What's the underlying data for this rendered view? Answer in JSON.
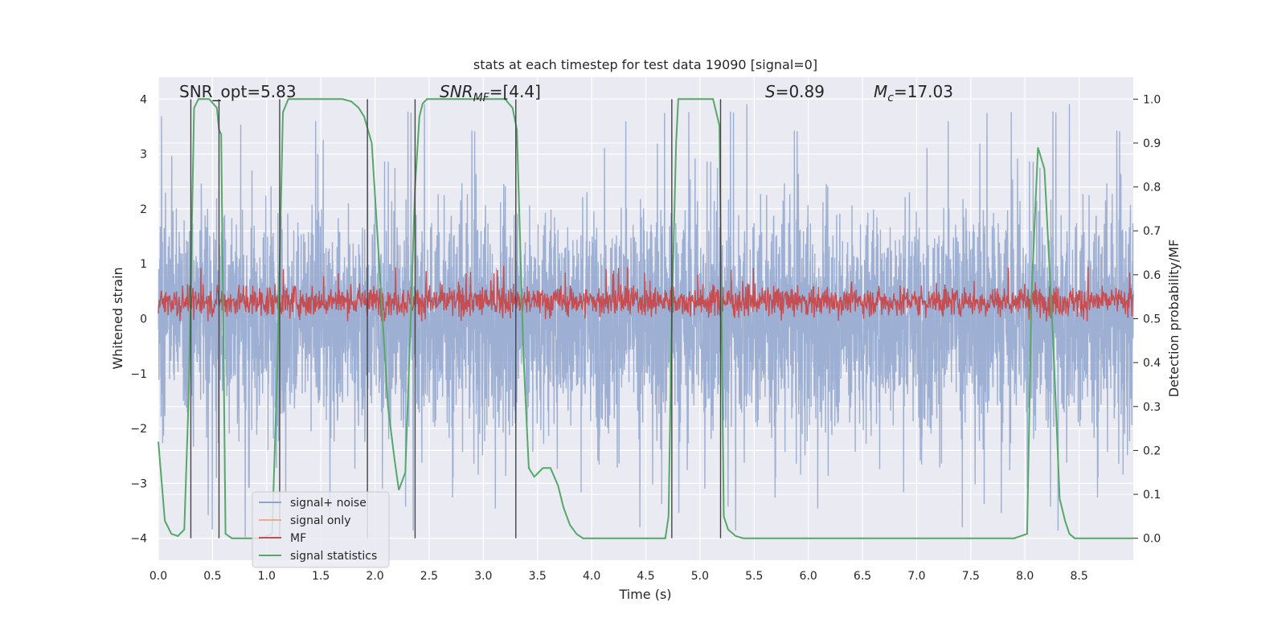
{
  "chart_data": {
    "type": "line",
    "title": "stats at each timestep for test data 19090 [signal=0]",
    "xlabel": "Time (s)",
    "ylabel": "Whitened strain",
    "ylabel_right": "Detection probability/MF",
    "xlim": [
      0,
      9.0
    ],
    "ylim": [
      -4.4,
      4.4
    ],
    "ylim_right": [
      -0.05,
      1.05
    ],
    "x_ticks": [
      0.0,
      0.5,
      1.0,
      1.5,
      2.0,
      2.5,
      3.0,
      3.5,
      4.0,
      4.5,
      5.0,
      5.5,
      6.0,
      6.5,
      7.0,
      7.5,
      8.0,
      8.5
    ],
    "x_tick_labels": [
      "0.0",
      "0.5",
      "1.0",
      "1.5",
      "2.0",
      "2.5",
      "3.0",
      "3.5",
      "4.0",
      "4.5",
      "5.0",
      "5.5",
      "6.0",
      "6.5",
      "7.0",
      "7.5",
      "8.0",
      "8.5"
    ],
    "y_ticks": [
      -4,
      -3,
      -2,
      -1,
      0,
      1,
      2,
      3,
      4
    ],
    "y_tick_labels": [
      "−4",
      "−3",
      "−2",
      "−1",
      "0",
      "1",
      "2",
      "3",
      "4"
    ],
    "y2_ticks": [
      0.0,
      0.1,
      0.2,
      0.3,
      0.4,
      0.5,
      0.6,
      0.7,
      0.8,
      0.9,
      1.0
    ],
    "y2_tick_labels": [
      "0.0",
      "0.1",
      "0.2",
      "0.3",
      "0.4",
      "0.5",
      "0.6",
      "0.7",
      "0.8",
      "0.9",
      "1.0"
    ],
    "annotations": {
      "snr_opt": "SNR_opt=5.83",
      "snr_mf_base": "SNR",
      "snr_mf_sub": "MF",
      "snr_mf_rest": "=[4.4]",
      "s_var": "S",
      "s_rest": "=0.89",
      "mc_base": "M",
      "mc_sub": "c",
      "mc_rest": "=17.03"
    },
    "legend": {
      "position": "lower-left",
      "entries": [
        {
          "label": "signal+ noise",
          "color": "#8fa4cc"
        },
        {
          "label": "signal only",
          "color": "#f0a989"
        },
        {
          "label": "MF",
          "color": "#c44e52"
        },
        {
          "label": "signal statistics",
          "color": "#55a868"
        }
      ]
    },
    "series": [
      {
        "name": "signal+ noise",
        "axis": "left",
        "style": "dense-noise",
        "color": "#8fa4cc",
        "x_range": [
          0,
          9.0
        ],
        "typical_range": [
          -1.9,
          1.9
        ],
        "peak_range": [
          -4.0,
          4.0
        ]
      },
      {
        "name": "MF",
        "axis": "left",
        "style": "dense-noise",
        "color": "#c44e52",
        "x_range": [
          0,
          9.0
        ],
        "center": 0.32,
        "typical_range": [
          0.0,
          0.65
        ],
        "peak_range": [
          -0.05,
          1.0
        ]
      },
      {
        "name": "signal statistics",
        "axis": "right",
        "color": "#55a868",
        "x": [
          0.0,
          0.06,
          0.12,
          0.18,
          0.24,
          0.28,
          0.33,
          0.37,
          0.4,
          0.47,
          0.54,
          0.56,
          0.58,
          0.62,
          0.68,
          0.75,
          0.85,
          0.95,
          1.05,
          1.1,
          1.15,
          1.2,
          1.3,
          1.5,
          1.7,
          1.78,
          1.85,
          1.9,
          1.97,
          2.02,
          2.07,
          2.12,
          2.18,
          2.22,
          2.28,
          2.33,
          2.37,
          2.41,
          2.44,
          2.48,
          2.54,
          2.6,
          2.8,
          3.0,
          3.2,
          3.27,
          3.31,
          3.37,
          3.42,
          3.47,
          3.55,
          3.62,
          3.69,
          3.74,
          3.8,
          3.86,
          3.92,
          4.0,
          4.2,
          4.5,
          4.68,
          4.71,
          4.74,
          4.78,
          4.8,
          4.83,
          5.0,
          5.12,
          5.18,
          5.22,
          5.26,
          5.33,
          5.4,
          5.6,
          6.0,
          7.0,
          7.8,
          7.9,
          7.96,
          8.02,
          8.06,
          8.12,
          8.18,
          8.23,
          8.26,
          8.32,
          8.37,
          8.41,
          8.46,
          8.6,
          9.0
        ],
        "y": [
          0.22,
          0.04,
          0.01,
          0.005,
          0.02,
          0.32,
          0.98,
          1.0,
          1.0,
          1.0,
          0.98,
          0.93,
          0.92,
          0.01,
          0.0,
          0.0,
          0.0,
          0.0,
          0.01,
          0.4,
          0.97,
          1.0,
          1.0,
          1.0,
          1.0,
          0.995,
          0.98,
          0.96,
          0.9,
          0.7,
          0.5,
          0.3,
          0.18,
          0.11,
          0.15,
          0.5,
          0.8,
          0.96,
          0.99,
          1.0,
          1.0,
          1.0,
          1.0,
          1.0,
          1.0,
          0.98,
          0.93,
          0.42,
          0.16,
          0.14,
          0.16,
          0.16,
          0.12,
          0.07,
          0.03,
          0.01,
          0.0,
          0.0,
          0.0,
          0.0,
          0.0,
          0.05,
          0.5,
          0.9,
          1.0,
          1.0,
          1.0,
          1.0,
          0.94,
          0.05,
          0.02,
          0.005,
          0.0,
          0.0,
          0.0,
          0.0,
          0.0,
          0.0,
          0.005,
          0.01,
          0.55,
          0.89,
          0.84,
          0.6,
          0.45,
          0.09,
          0.04,
          0.01,
          0.0,
          0.0,
          0.0
        ]
      }
    ],
    "vertical_markers": {
      "color": "#444444",
      "y_range": [
        -4.0,
        4.0
      ],
      "x": [
        0.3,
        0.56,
        1.12,
        1.93,
        2.37,
        3.3,
        4.74,
        5.19
      ]
    }
  }
}
